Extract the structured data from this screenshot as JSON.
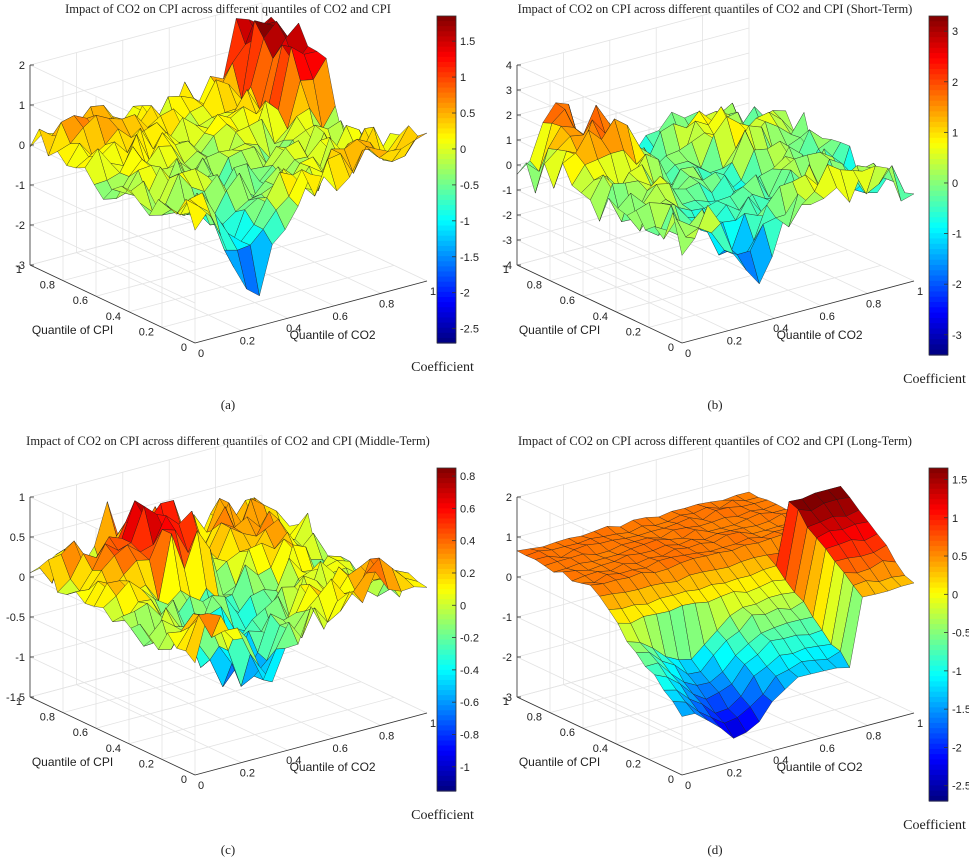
{
  "chart_data": [
    {
      "panel": "(a)",
      "type": "surface3d",
      "title": "Impact of CO2 on CPI across different quantiles of CO2 and CPI",
      "xlabel": "Quantile of CO2",
      "ylabel": "Quantile of CPI",
      "zticks": [
        -3,
        -2,
        -1,
        0,
        1,
        2
      ],
      "zlim": [
        -3,
        2
      ],
      "xticks": [
        0,
        0.2,
        0.4,
        0.6,
        0.8,
        1
      ],
      "yticks": [
        0,
        0.2,
        0.4,
        0.6,
        0.8,
        1
      ],
      "colorbar_label": "Coefficient",
      "colorbar_ticks": [
        -2.5,
        -2,
        -1.5,
        -1,
        -0.5,
        0,
        0.5,
        1,
        1.5
      ],
      "clim": [
        -2.7,
        1.85
      ],
      "grid": true,
      "approx_surface_summary": {
        "min": -2.6,
        "max": 1.8,
        "typical_range": [
          -1,
          1
        ]
      }
    },
    {
      "panel": "(b)",
      "type": "surface3d",
      "title": "Impact of CO2 on CPI across different quantiles of CO2 and CPI (Short-Term)",
      "xlabel": "Quantile of CO2",
      "ylabel": "Quantile of CPI",
      "zticks": [
        -4,
        -3,
        -2,
        -1,
        0,
        1,
        2,
        3,
        4
      ],
      "zlim": [
        -4,
        4
      ],
      "xticks": [
        0,
        0.2,
        0.4,
        0.6,
        0.8,
        1
      ],
      "yticks": [
        0,
        0.2,
        0.4,
        0.6,
        0.8,
        1
      ],
      "colorbar_label": "Coefficient",
      "colorbar_ticks": [
        -3,
        -2,
        -1,
        0,
        1,
        2,
        3
      ],
      "clim": [
        -3.4,
        3.3
      ],
      "grid": true,
      "approx_surface_summary": {
        "min": -3.3,
        "max": 3.2,
        "typical_range": [
          -1.5,
          1.5
        ]
      }
    },
    {
      "panel": "(c)",
      "type": "surface3d",
      "title": "Impact of CO2 on CPI across different quantiles of CO2 and CPI (Middle-Term)",
      "xlabel": "Quantile of CO2",
      "ylabel": "Quantile of CPI",
      "zticks": [
        -1.5,
        -1,
        -0.5,
        0,
        0.5,
        1
      ],
      "zlim": [
        -1.5,
        1
      ],
      "xticks": [
        0,
        0.2,
        0.4,
        0.6,
        0.8,
        1
      ],
      "yticks": [
        0,
        0.2,
        0.4,
        0.6,
        0.8,
        1
      ],
      "colorbar_label": "Coefficient",
      "colorbar_ticks": [
        -1,
        -0.8,
        -0.6,
        -0.4,
        -0.2,
        0,
        0.2,
        0.4,
        0.6,
        0.8
      ],
      "clim": [
        -1.15,
        0.85
      ],
      "grid": true,
      "approx_surface_summary": {
        "min": -1.1,
        "max": 0.85,
        "typical_range": [
          -0.5,
          0.5
        ]
      }
    },
    {
      "panel": "(d)",
      "type": "surface3d",
      "title": "Impact of CO2 on CPI across different quantiles of CO2 and CPI (Long-Term)",
      "xlabel": "Quantile of CO2",
      "ylabel": "Quantile of CPI",
      "zticks": [
        -3,
        -2,
        -1,
        0,
        1,
        2
      ],
      "zlim": [
        -3,
        2
      ],
      "xticks": [
        0,
        0.2,
        0.4,
        0.6,
        0.8,
        1
      ],
      "yticks": [
        0,
        0.2,
        0.4,
        0.6,
        0.8,
        1
      ],
      "colorbar_label": "Coefficient",
      "colorbar_ticks": [
        -2.5,
        -2,
        -1.5,
        -1,
        -0.5,
        0,
        0.5,
        1,
        1.5
      ],
      "clim": [
        -2.7,
        1.65
      ],
      "grid": true,
      "approx_surface_summary": {
        "min": -2.6,
        "max": 1.6,
        "typical_range": [
          -2,
          0.5
        ]
      }
    }
  ]
}
